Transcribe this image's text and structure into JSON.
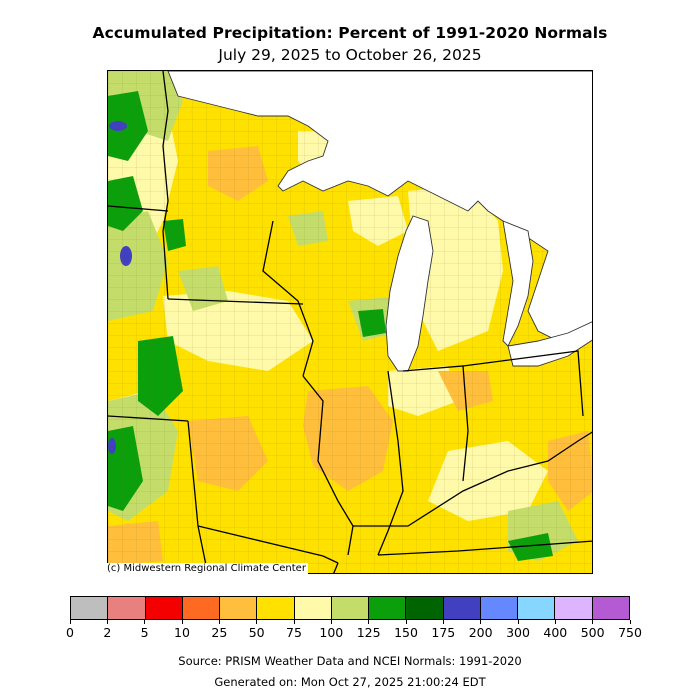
{
  "header": {
    "title": "Accumulated Precipitation: Percent of 1991-2020 Normals",
    "subtitle": "July 29, 2025 to October 26, 2025"
  },
  "map": {
    "credit": "(c) Midwestern Regional Climate Center",
    "region": "Midwest United States",
    "water_color": "#ffffff"
  },
  "legend": {
    "ticks": [
      "0",
      "2",
      "5",
      "10",
      "25",
      "50",
      "75",
      "100",
      "125",
      "150",
      "175",
      "200",
      "300",
      "400",
      "500",
      "750"
    ],
    "colors": [
      "#bebebe",
      "#e88080",
      "#f50000",
      "#ff6a23",
      "#ffbe3c",
      "#ffe100",
      "#fffaaa",
      "#c4dd6a",
      "#0ba00b",
      "#006400",
      "#4040c0",
      "#6688ff",
      "#86d6ff",
      "#dcb4ff",
      "#b45ad2"
    ]
  },
  "footer": {
    "source": "Source: PRISM Weather Data and NCEI Normals: 1991-2020",
    "generated": "Generated on: Mon Oct 27, 2025 21:00:24 EDT"
  }
}
